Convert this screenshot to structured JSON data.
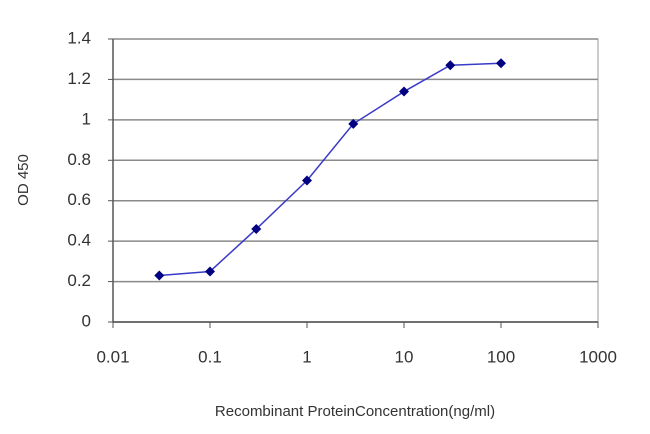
{
  "chart_data": {
    "type": "line",
    "x_label": "Recombinant ProteinConcentration(ng/ml)",
    "y_label": "OD 450",
    "xscale": "log",
    "grid": true,
    "x": [
      0.03,
      0.1,
      0.3,
      1,
      3,
      10,
      30,
      100
    ],
    "series": [
      {
        "color": "#3a3ac8",
        "marker_color": "#000080",
        "values": [
          0.23,
          0.25,
          0.46,
          0.7,
          0.98,
          1.14,
          1.27,
          1.28
        ]
      }
    ],
    "xlim": [
      0.01,
      1000
    ],
    "xticks": [
      0.01,
      0.1,
      1,
      10,
      100,
      1000
    ],
    "ylim": [
      0,
      1.4
    ],
    "yticks": [
      0,
      0.2,
      0.4,
      0.6,
      0.8,
      1,
      1.2,
      1.4
    ]
  }
}
